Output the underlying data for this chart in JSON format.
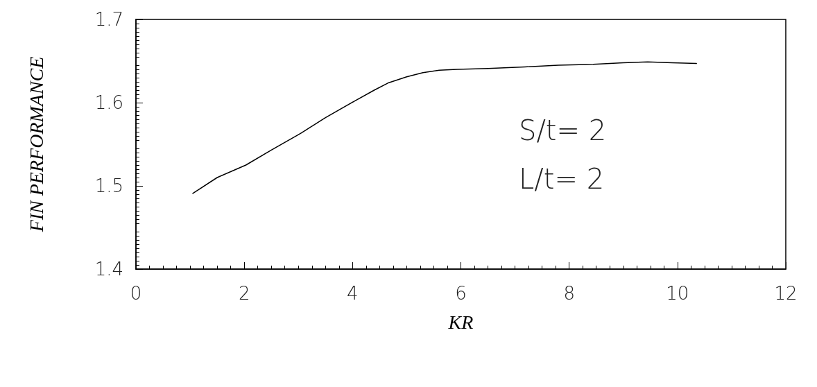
{
  "chart_data": {
    "type": "line",
    "xlabel": "KR",
    "ylabel": "FIN PERFORMANCE",
    "x": [
      1.05,
      1.5,
      2.03,
      2.5,
      3.04,
      3.5,
      4.04,
      4.4,
      4.67,
      5.0,
      5.3,
      5.6,
      5.93,
      6.5,
      7.18,
      7.8,
      8.44,
      9.0,
      9.45,
      9.9,
      10.35
    ],
    "series": [
      {
        "color": "#000000",
        "values": [
          1.491,
          1.51,
          1.525,
          1.543,
          1.563,
          1.582,
          1.602,
          1.615,
          1.624,
          1.631,
          1.636,
          1.639,
          1.64,
          1.641,
          1.643,
          1.645,
          1.646,
          1.648,
          1.649,
          1.648,
          1.647
        ]
      }
    ],
    "xlim": [
      0,
      12
    ],
    "xticks": [
      0,
      2,
      4,
      6,
      8,
      10,
      12
    ],
    "ylim": [
      1.4,
      1.7
    ],
    "yticks": [
      1.4,
      1.5,
      1.6,
      1.7
    ],
    "grid": false,
    "marker": "none",
    "line_style": "solid",
    "annotations": [
      "S/t= 2",
      "L/t= 2"
    ]
  }
}
